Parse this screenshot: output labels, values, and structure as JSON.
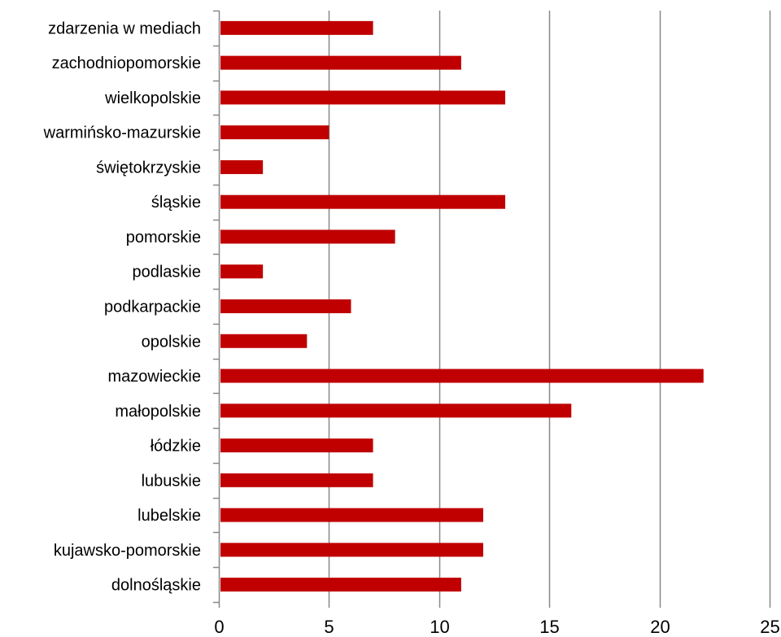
{
  "chart_data": {
    "type": "bar",
    "orientation": "horizontal",
    "categories": [
      "zdarzenia w mediach",
      "zachodniopomorskie",
      "wielkopolskie",
      "warmińsko-mazurskie",
      "świętokrzyskie",
      "śląskie",
      "pomorskie",
      "podlaskie",
      "podkarpackie",
      "opolskie",
      "mazowieckie",
      "małopolskie",
      "łódzkie",
      "lubuskie",
      "lubelskie",
      "kujawsko-pomorskie",
      "dolnośląskie"
    ],
    "values": [
      7,
      11,
      13,
      5,
      2,
      13,
      8,
      2,
      6,
      4,
      22,
      16,
      7,
      7,
      12,
      12,
      11
    ],
    "xlim": [
      0,
      25
    ],
    "xticks": [
      "0",
      "5",
      "10",
      "15",
      "20",
      "25"
    ],
    "grid": "vertical",
    "legend": "none",
    "bar_color": "#c00000",
    "grid_color": "#888888",
    "title": "",
    "xlabel": "",
    "ylabel": ""
  }
}
